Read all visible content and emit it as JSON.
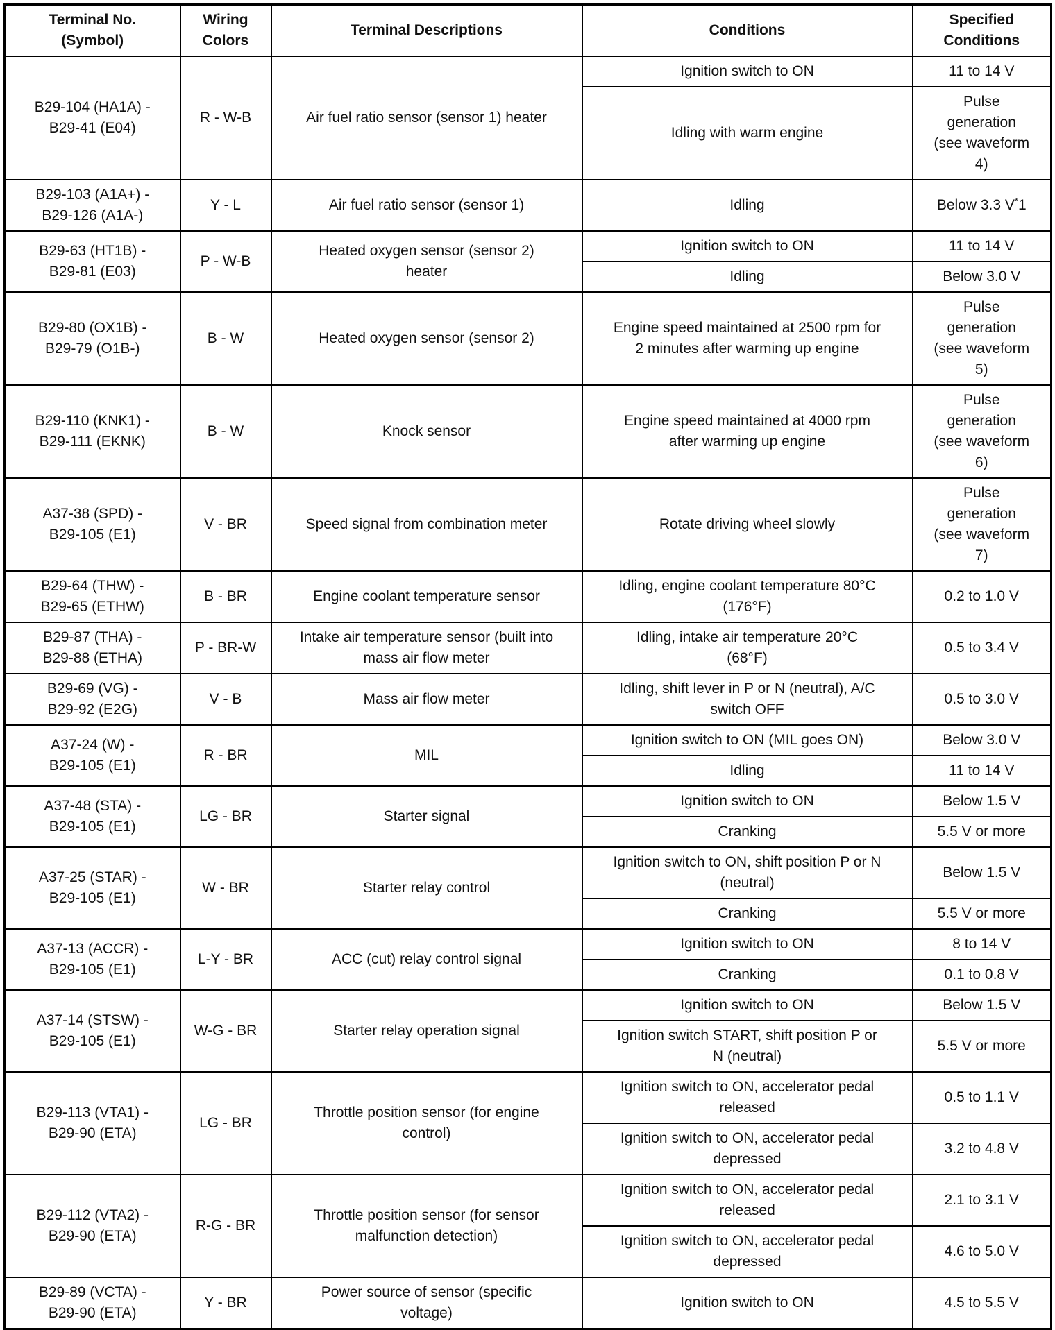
{
  "headers": [
    "Terminal No.\n(Symbol)",
    "Wiring\nColors",
    "Terminal Descriptions",
    "Conditions",
    "Specified\nConditions"
  ],
  "rows": [
    {
      "terminal": "B29-104 (HA1A) -\nB29-41 (E04)",
      "wiring": "R - W-B",
      "description": "Air fuel ratio sensor (sensor 1) heater",
      "conditions": [
        {
          "condition": "Ignition switch to ON",
          "spec": "11 to 14 V"
        },
        {
          "condition": "Idling with warm engine",
          "spec": "Pulse\ngeneration\n(see waveform\n4)"
        }
      ]
    },
    {
      "terminal": "B29-103 (A1A+) -\nB29-126 (A1A-)",
      "wiring": "Y - L",
      "description": "Air fuel ratio sensor (sensor 1)",
      "conditions": [
        {
          "condition": "Idling",
          "spec": "Below 3.3 V*1"
        }
      ]
    },
    {
      "terminal": "B29-63 (HT1B) -\nB29-81 (E03)",
      "wiring": "P - W-B",
      "description": "Heated oxygen sensor (sensor 2)\nheater",
      "conditions": [
        {
          "condition": "Ignition switch to ON",
          "spec": "11 to 14 V"
        },
        {
          "condition": "Idling",
          "spec": "Below 3.0 V"
        }
      ]
    },
    {
      "terminal": "B29-80 (OX1B) -\nB29-79 (O1B-)",
      "wiring": "B - W",
      "description": "Heated oxygen sensor (sensor 2)",
      "conditions": [
        {
          "condition": "Engine speed maintained at 2500 rpm for\n2 minutes after warming up engine",
          "spec": "Pulse\ngeneration\n(see waveform\n5)"
        }
      ]
    },
    {
      "terminal": "B29-110 (KNK1) -\nB29-111 (EKNK)",
      "wiring": "B - W",
      "description": "Knock sensor",
      "conditions": [
        {
          "condition": "Engine speed maintained at 4000 rpm\nafter warming up engine",
          "spec": "Pulse\ngeneration\n(see waveform\n6)"
        }
      ]
    },
    {
      "terminal": "A37-38 (SPD) -\nB29-105 (E1)",
      "wiring": "V - BR",
      "description": "Speed signal from combination meter",
      "conditions": [
        {
          "condition": "Rotate driving wheel slowly",
          "spec": "Pulse\ngeneration\n(see waveform\n7)"
        }
      ]
    },
    {
      "terminal": "B29-64 (THW) -\nB29-65 (ETHW)",
      "wiring": "B - BR",
      "description": "Engine coolant temperature sensor",
      "conditions": [
        {
          "condition": "Idling, engine coolant temperature 80°C\n(176°F)",
          "spec": "0.2 to 1.0 V"
        }
      ]
    },
    {
      "terminal": "B29-87 (THA) -\nB29-88 (ETHA)",
      "wiring": "P - BR-W",
      "description": "Intake air temperature sensor (built into\nmass air flow meter",
      "conditions": [
        {
          "condition": "Idling, intake air temperature 20°C\n(68°F)",
          "spec": "0.5 to 3.4 V"
        }
      ]
    },
    {
      "terminal": "B29-69 (VG) -\nB29-92 (E2G)",
      "wiring": "V - B",
      "description": "Mass air flow meter",
      "conditions": [
        {
          "condition": "Idling, shift lever in P or N (neutral), A/C\nswitch OFF",
          "spec": "0.5 to 3.0 V"
        }
      ]
    },
    {
      "terminal": "A37-24 (W) -\nB29-105 (E1)",
      "wiring": "R - BR",
      "description": "MIL",
      "conditions": [
        {
          "condition": "Ignition switch to ON (MIL goes ON)",
          "spec": "Below 3.0 V"
        },
        {
          "condition": "Idling",
          "spec": "11 to 14 V"
        }
      ]
    },
    {
      "terminal": "A37-48 (STA) -\nB29-105 (E1)",
      "wiring": "LG - BR",
      "description": "Starter signal",
      "conditions": [
        {
          "condition": "Ignition switch to ON",
          "spec": "Below 1.5 V"
        },
        {
          "condition": "Cranking",
          "spec": "5.5 V or more"
        }
      ]
    },
    {
      "terminal": "A37-25 (STAR) -\nB29-105 (E1)",
      "wiring": "W - BR",
      "description": "Starter relay control",
      "conditions": [
        {
          "condition": "Ignition switch to ON, shift position P or N\n(neutral)",
          "spec": "Below 1.5 V"
        },
        {
          "condition": "Cranking",
          "spec": "5.5 V or more"
        }
      ]
    },
    {
      "terminal": "A37-13 (ACCR) -\nB29-105 (E1)",
      "wiring": "L-Y - BR",
      "description": "ACC (cut) relay control signal",
      "conditions": [
        {
          "condition": "Ignition switch to ON",
          "spec": "8 to 14 V"
        },
        {
          "condition": "Cranking",
          "spec": "0.1 to 0.8 V"
        }
      ]
    },
    {
      "terminal": "A37-14 (STSW) -\nB29-105 (E1)",
      "wiring": "W-G - BR",
      "description": "Starter relay operation signal",
      "conditions": [
        {
          "condition": "Ignition switch to ON",
          "spec": "Below 1.5 V"
        },
        {
          "condition": "Ignition switch START, shift position P or\nN (neutral)",
          "spec": "5.5 V or more"
        }
      ]
    },
    {
      "terminal": "B29-113 (VTA1) -\nB29-90 (ETA)",
      "wiring": "LG - BR",
      "description": "Throttle position sensor (for engine\ncontrol)",
      "conditions": [
        {
          "condition": "Ignition switch to ON, accelerator pedal\nreleased",
          "spec": "0.5 to 1.1 V"
        },
        {
          "condition": "Ignition switch to ON, accelerator pedal\ndepressed",
          "spec": "3.2 to 4.8 V"
        }
      ]
    },
    {
      "terminal": "B29-112 (VTA2) -\nB29-90 (ETA)",
      "wiring": "R-G - BR",
      "description": "Throttle position sensor (for sensor\nmalfunction detection)",
      "conditions": [
        {
          "condition": "Ignition switch to ON, accelerator pedal\nreleased",
          "spec": "2.1 to 3.1 V"
        },
        {
          "condition": "Ignition switch to ON, accelerator pedal\ndepressed",
          "spec": "4.6 to 5.0 V"
        }
      ]
    },
    {
      "terminal": "B29-89 (VCTA) -\nB29-90 (ETA)",
      "wiring": "Y - BR",
      "description": "Power source of sensor (specific\nvoltage)",
      "conditions": [
        {
          "condition": "Ignition switch to ON",
          "spec": "4.5 to 5.5 V"
        }
      ]
    }
  ]
}
